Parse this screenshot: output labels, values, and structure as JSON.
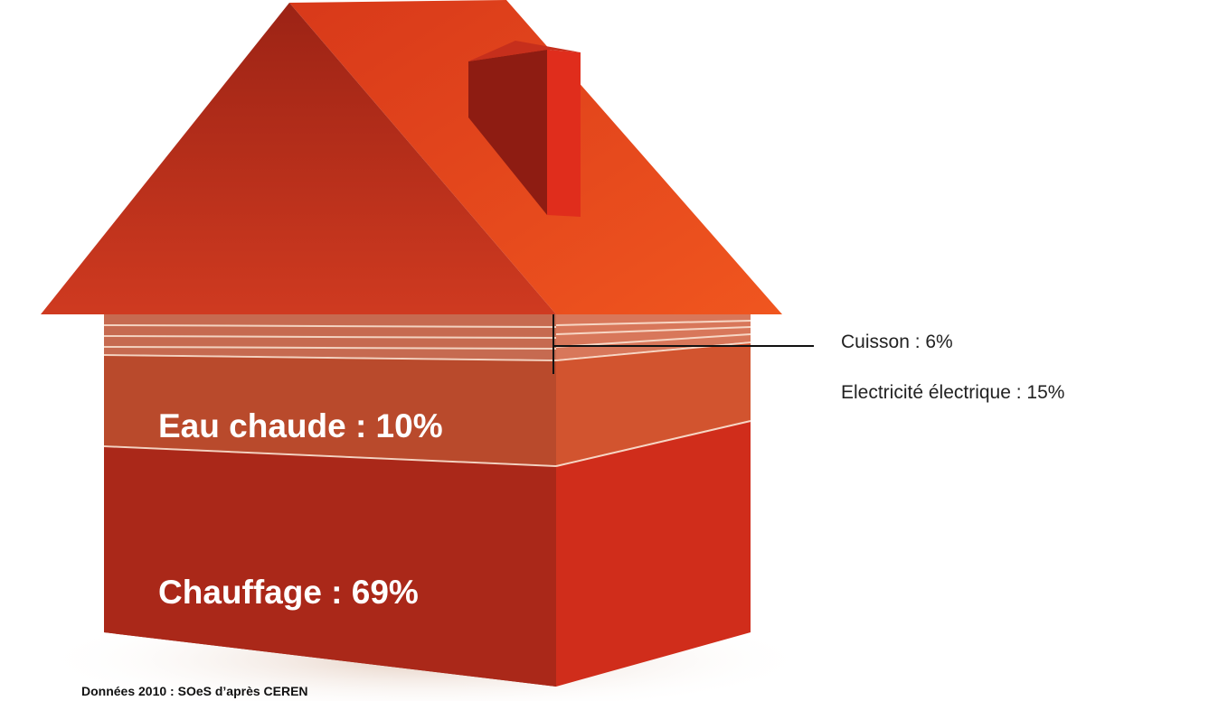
{
  "segments": [
    {
      "label": "Eau chaude : 10%"
    },
    {
      "label": "Chauffage : 69%"
    }
  ],
  "callouts": [
    "Cuisson : 6%",
    "Electricité électrique : 15%"
  ],
  "source": "Données 2010 : SOeS d’après CEREN"
}
